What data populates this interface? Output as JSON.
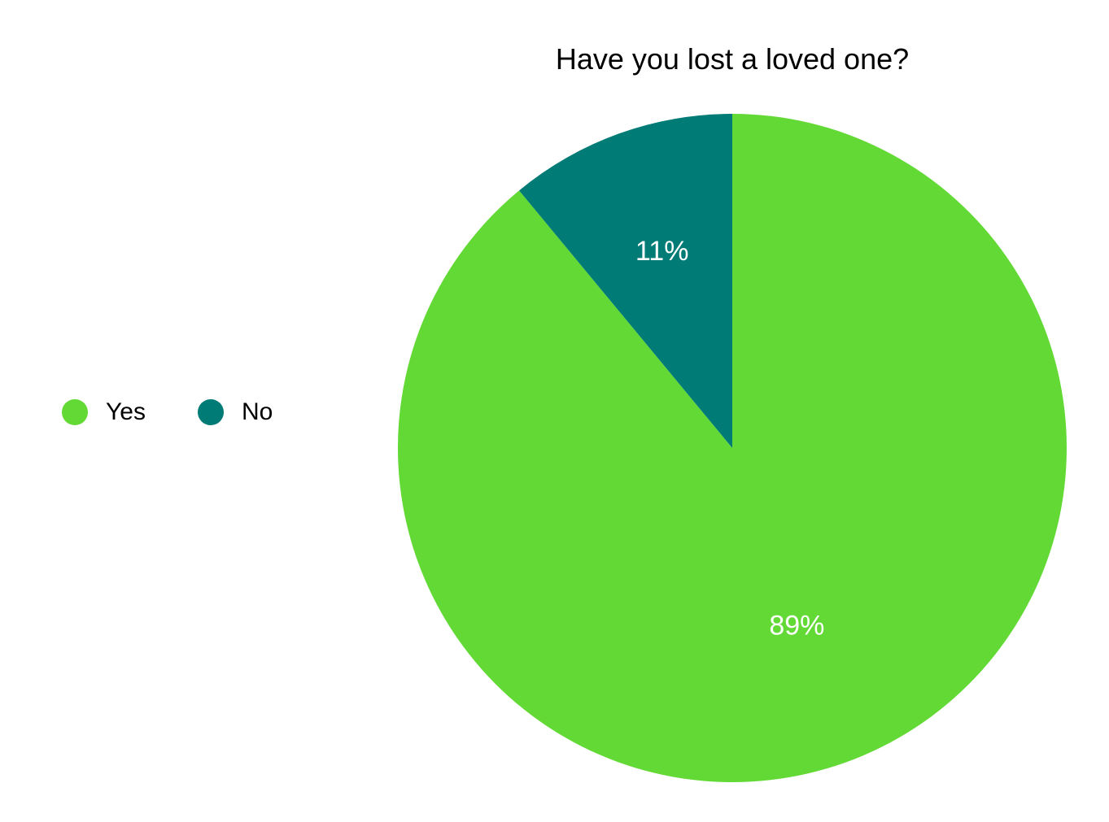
{
  "chart_data": {
    "type": "pie",
    "title": "Have you lost a loved one?",
    "categories": [
      "Yes",
      "No"
    ],
    "values": [
      89,
      11
    ],
    "labels": [
      "89%",
      "11%"
    ],
    "colors": [
      "#63D936",
      "#017B76"
    ],
    "legend_position": "left",
    "start": "12 o'clock, clockwise"
  }
}
